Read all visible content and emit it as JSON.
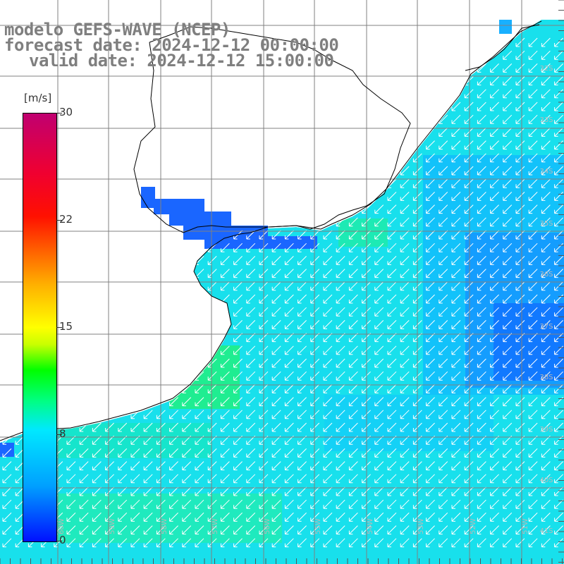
{
  "header": {
    "line1": "modelo GEFS-WAVE (NCEP)",
    "line2": "forecast date: 2024-12-12 00:00:00",
    "line3": "valid date: 2024-12-12 15:00:00"
  },
  "colorbar": {
    "unit": "[m/s]",
    "ticks": [
      {
        "label": "30",
        "value": 30
      },
      {
        "label": "22",
        "value": 22
      },
      {
        "label": "15",
        "value": 15
      },
      {
        "label": "8",
        "value": 8
      },
      {
        "label": "0",
        "value": 0
      }
    ],
    "range": [
      0,
      30
    ]
  },
  "axes": {
    "lat_labels": [
      "32S",
      "33S",
      "34S",
      "35S",
      "36S",
      "37S",
      "38S",
      "39S",
      "40S",
      "41S"
    ],
    "lon_labels": [
      "60W",
      "59W",
      "58W",
      "57W",
      "56W",
      "55W",
      "54W",
      "53W",
      "52W",
      "51W"
    ]
  },
  "colors": {
    "land": "#ffffff",
    "grid": "#808080",
    "coast": "#000000",
    "arrows": "#ffffff"
  }
}
